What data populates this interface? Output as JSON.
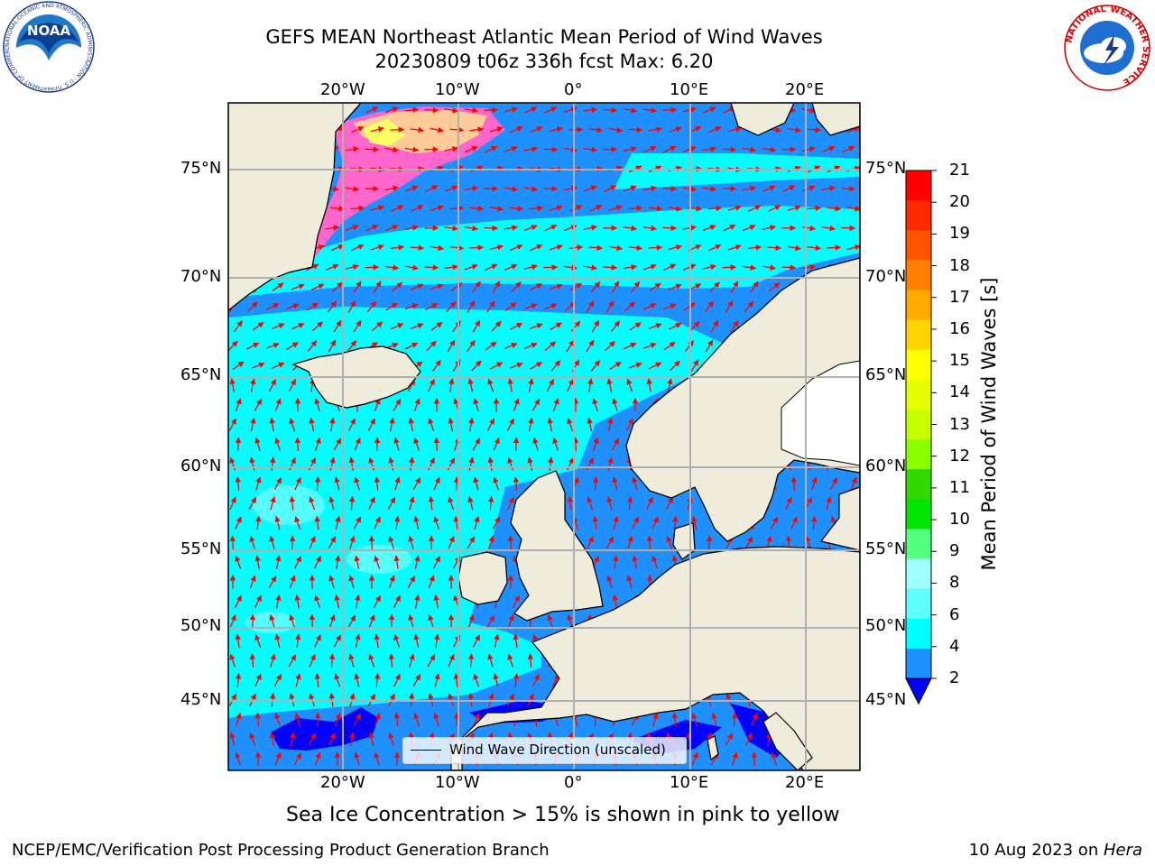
{
  "header": {
    "title_line1": "GEFS MEAN Northeast Atlantic Mean Period of Wind Waves",
    "title_line2": "20230809 t06z 336h fcst   Max: 6.20"
  },
  "map": {
    "lon_ticks_top": [
      "20°W",
      "10°W",
      "0°",
      "10°E",
      "20°E"
    ],
    "lon_ticks_bottom": [
      "20°W",
      "10°W",
      "0°",
      "10°E",
      "20°E"
    ],
    "lat_ticks_left": [
      "75°N",
      "70°N",
      "65°N",
      "60°N",
      "55°N",
      "50°N",
      "45°N"
    ],
    "lat_ticks_right": [
      "75°N",
      "70°N",
      "65°N",
      "60°N",
      "55°N",
      "50°N",
      "45°N"
    ],
    "legend_label": "Wind Wave Direction (unscaled)",
    "colors": {
      "land": "#efecdc",
      "ocean_2_4": "#1e90ff",
      "ocean_4_6": "#00ffff",
      "ocean_6_8": "#40ffff",
      "below_2": "#0000ff",
      "grid": "#b0b0b0",
      "arrow": "#ff0000",
      "ice_pink": "#ff66cc",
      "ice_yellow": "#ffff66"
    }
  },
  "colorbar": {
    "title": "Mean Period of Wind Waves [s]",
    "labels": [
      "21",
      "20",
      "19",
      "18",
      "17",
      "16",
      "15",
      "14",
      "13",
      "12",
      "11",
      "10",
      "9",
      "8",
      "6",
      "4",
      "2"
    ],
    "colors_top_to_bottom": [
      "#ff0000",
      "#ff2a00",
      "#ff5500",
      "#ff8000",
      "#ffaa00",
      "#ffd500",
      "#ffff00",
      "#e6ff00",
      "#c8ff00",
      "#8cff00",
      "#32d900",
      "#00e600",
      "#55ff7f",
      "#9fffff",
      "#5fffff",
      "#00ffff",
      "#1e90ff"
    ],
    "under_color": "#0000ff"
  },
  "footer": {
    "sea_ice_note": "Sea Ice Concentration > 15% is shown in pink to yellow",
    "branch": "NCEP/EMC/Verification Post Processing Product Generation Branch",
    "date_prefix": "10 Aug 2023 on ",
    "machine": "Hera"
  },
  "logos": {
    "left_text": "NOAA",
    "left_ring_text": "NATIONAL OCEANIC AND ATMOSPHERIC ADMINISTRATION · U.S. DEPARTMENT OF COMMERCE",
    "right_ring_text": "NATIONAL WEATHER SERVICE"
  }
}
